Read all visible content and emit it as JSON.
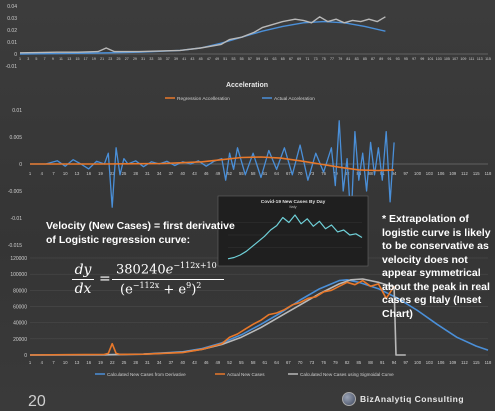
{
  "colors": {
    "blue": "#4a8fd8",
    "orange": "#e8782a",
    "gray": "#b9b9b9",
    "axis": "#8a8a8a",
    "grid": "#555555",
    "text": "#d0d0d0"
  },
  "annotations": {
    "velocity_title": "Velocity (New Cases) = first derivative of Logistic regression curve:",
    "note": "* Extrapolation of logistic curve is likely to be conservative as velocity does not appear symmetrical about the peak in real cases eg Italy (Inset Chart)",
    "eq_left_top": "dy",
    "eq_left_bottom": "dx",
    "eq_eq": "=",
    "eq_num_coef": "380240",
    "eq_num_exp": "−112x+10",
    "eq_den": "(e",
    "eq_den_exp1": "−112x",
    "eq_den_mid": " + e",
    "eq_den_exp2": "9",
    "eq_den_close": ")",
    "eq_den_pow": "2",
    "page_number": "20",
    "logo_text": "BizAnalytiq Consulting"
  },
  "chart_data": [
    {
      "type": "line",
      "title": "",
      "yticks": [
        "0.04",
        "0.03",
        "0.02",
        "0.01",
        "0",
        "-0.01"
      ],
      "ylim": [
        -0.01,
        0.04
      ],
      "x": [
        1,
        3,
        5,
        7,
        9,
        11,
        13,
        15,
        17,
        19,
        21,
        23,
        25,
        27,
        29,
        31,
        33,
        35,
        37,
        39,
        41,
        43,
        45,
        47,
        49,
        51,
        53,
        55,
        57,
        59,
        61,
        63,
        65,
        67,
        69,
        71,
        73,
        75,
        77,
        79,
        81,
        83,
        85,
        87,
        89,
        91,
        93,
        95,
        97,
        99,
        101,
        103,
        105,
        107,
        109,
        111,
        113,
        115
      ],
      "x_tick_labels": [
        "1",
        "3",
        "5",
        "7",
        "9",
        "11",
        "13",
        "15",
        "17",
        "19",
        "21",
        "23",
        "25",
        "27",
        "29",
        "31",
        "33",
        "35",
        "37",
        "39",
        "41",
        "43",
        "45",
        "47",
        "49",
        "51",
        "53",
        "55",
        "57",
        "59",
        "61",
        "63",
        "65",
        "67",
        "69",
        "71",
        "73",
        "75",
        "77",
        "79",
        "81",
        "83",
        "85",
        "87",
        "89",
        "91",
        "93",
        "95",
        "97",
        "99",
        "101",
        "103",
        "105",
        "107",
        "109",
        "111",
        "113",
        "115"
      ],
      "series": [
        {
          "color": "#4a8fd8",
          "x": [
            1,
            10,
            20,
            30,
            40,
            45,
            50,
            55,
            60,
            65,
            70,
            75,
            80,
            85,
            90
          ],
          "values": [
            0,
            0.0003,
            0.0008,
            0.0015,
            0.003,
            0.005,
            0.009,
            0.014,
            0.019,
            0.023,
            0.026,
            0.027,
            0.026,
            0.023,
            0.019
          ]
        },
        {
          "color": "#b9b9b9",
          "x": [
            1,
            5,
            10,
            15,
            20,
            22,
            24,
            30,
            40,
            45,
            50,
            52,
            55,
            58,
            60,
            62,
            65,
            68,
            70,
            72,
            74,
            76,
            78,
            80,
            82,
            84,
            86,
            88,
            90
          ],
          "values": [
            0.001,
            0.0012,
            0.0015,
            0.0015,
            0.002,
            0.005,
            0.002,
            0.002,
            0.003,
            0.005,
            0.008,
            0.012,
            0.014,
            0.018,
            0.022,
            0.024,
            0.027,
            0.029,
            0.028,
            0.026,
            0.031,
            0.027,
            0.029,
            0.026,
            0.028,
            0.027,
            0.029,
            0.027,
            0.031
          ]
        }
      ]
    },
    {
      "type": "line",
      "title": "Acceleration",
      "legend": [
        "Regression Accelleration",
        "Actual Acceleration"
      ],
      "yticks": [
        "0.01",
        "0.005",
        "0",
        "-0.005",
        "-0.01",
        "-0.015"
      ],
      "ylim": [
        -0.015,
        0.01
      ],
      "x_tick_labels": [
        "1",
        "4",
        "7",
        "10",
        "13",
        "16",
        "19",
        "22",
        "25",
        "28",
        "31",
        "34",
        "37",
        "40",
        "43",
        "46",
        "49",
        "52",
        "55",
        "58",
        "61",
        "64",
        "67",
        "70",
        "73",
        "76",
        "79",
        "82",
        "85",
        "88",
        "91",
        "94",
        "97",
        "100",
        "103",
        "106",
        "109",
        "112",
        "115",
        "118"
      ],
      "series": [
        {
          "name": "Regression Accelleration",
          "color": "#e8782a",
          "x": [
            1,
            20,
            35,
            45,
            50,
            55,
            60,
            65,
            70,
            75,
            80,
            85,
            90,
            94
          ],
          "values": [
            0,
            0,
            0.0001,
            0.0004,
            0.0008,
            0.0012,
            0.0013,
            0.0011,
            0.0006,
            0,
            -0.0006,
            -0.0011,
            -0.0012,
            -0.0011
          ]
        },
        {
          "name": "Actual Acceleration",
          "color": "#4a8fd8",
          "x": [
            1,
            5,
            8,
            10,
            12,
            14,
            16,
            18,
            20,
            21,
            22,
            23,
            24,
            25,
            26,
            28,
            30,
            32,
            34,
            36,
            38,
            40,
            42,
            44,
            46,
            48,
            50,
            51,
            52,
            53,
            54,
            56,
            58,
            60,
            62,
            64,
            66,
            68,
            70,
            72,
            74,
            76,
            78,
            79,
            80,
            81,
            82,
            83,
            84,
            85,
            86,
            87,
            88,
            89,
            90,
            91,
            92,
            93,
            94
          ],
          "values": [
            0,
            0,
            0.0006,
            -0.0004,
            0.0008,
            0,
            -0.0009,
            0.0005,
            0,
            0.002,
            -0.008,
            0.003,
            -0.002,
            0.001,
            0,
            0.0006,
            -0.0005,
            0.0004,
            0,
            0.0005,
            -0.0003,
            0.0004,
            0,
            0.0006,
            -0.0004,
            0.0005,
            0.001,
            -0.003,
            0.002,
            -0.001,
            0.003,
            -0.002,
            0.002,
            -0.0025,
            0.0025,
            -0.001,
            0.003,
            -0.002,
            0.0035,
            -0.003,
            0.002,
            -0.0015,
            0.003,
            -0.004,
            0.008,
            -0.005,
            0.001,
            -0.011,
            0.006,
            -0.003,
            0.002,
            -0.005,
            0.004,
            -0.002,
            0.003,
            -0.003,
            0.006,
            -0.007,
            0.004
          ]
        }
      ]
    },
    {
      "type": "line",
      "title": "",
      "yticks": [
        "120000",
        "100000",
        "80000",
        "60000",
        "40000",
        "20000",
        "0"
      ],
      "ylim": [
        0,
        120000
      ],
      "legend": [
        "Calculated New Cases from Derivative",
        "Actual New Cases",
        "Calculated New Cases using Sigmoidal Curve"
      ],
      "x_tick_labels": [
        "1",
        "4",
        "7",
        "10",
        "13",
        "16",
        "19",
        "22",
        "25",
        "28",
        "31",
        "34",
        "37",
        "40",
        "43",
        "46",
        "49",
        "52",
        "55",
        "58",
        "61",
        "64",
        "67",
        "70",
        "73",
        "76",
        "79",
        "82",
        "85",
        "88",
        "91",
        "94",
        "97",
        "100",
        "103",
        "106",
        "109",
        "112",
        "115",
        "118"
      ],
      "series": [
        {
          "name": "Calculated New Cases from Derivative",
          "color": "#4a8fd8",
          "x": [
            1,
            20,
            30,
            40,
            45,
            50,
            55,
            60,
            65,
            70,
            75,
            80,
            82,
            85,
            90,
            95,
            100,
            105,
            110,
            115,
            118
          ],
          "values": [
            0,
            300,
            1200,
            4000,
            8000,
            15000,
            25000,
            38000,
            52000,
            68000,
            82000,
            92000,
            93000,
            90000,
            82000,
            70000,
            55000,
            38000,
            22000,
            11000,
            6000
          ]
        },
        {
          "name": "Actual New Cases",
          "color": "#e8782a",
          "x": [
            1,
            10,
            20,
            21,
            22,
            23,
            24,
            30,
            40,
            45,
            50,
            52,
            54,
            56,
            58,
            60,
            62,
            64,
            66,
            68,
            70,
            72,
            74,
            76,
            78,
            80,
            82,
            84,
            86,
            88,
            90,
            92,
            94
          ],
          "values": [
            0,
            400,
            800,
            2000,
            14000,
            2000,
            800,
            1000,
            3000,
            7000,
            14000,
            22000,
            26000,
            32000,
            38000,
            43000,
            50000,
            52000,
            56000,
            62000,
            65000,
            70000,
            72000,
            78000,
            80000,
            85000,
            90000,
            87000,
            92000,
            85000,
            88000,
            70000,
            85000
          ]
        },
        {
          "name": "Calculated New Cases using Sigmoidal Curve",
          "color": "#b9b9b9",
          "x": [
            1,
            20,
            30,
            40,
            45,
            50,
            55,
            60,
            65,
            70,
            75,
            80,
            83,
            86,
            90,
            94,
            94.5,
            97
          ],
          "values": [
            0,
            200,
            1000,
            3500,
            7000,
            13000,
            22000,
            34000,
            48000,
            62000,
            76000,
            88000,
            93000,
            94000,
            90000,
            84000,
            0,
            0
          ]
        }
      ]
    },
    {
      "type": "line",
      "title": "Covid-19 New Cases By Day",
      "subtitle": "Italy",
      "series": [
        {
          "color": "#6fd0d8",
          "x": [
            1,
            3,
            5,
            7,
            9,
            11,
            13,
            15,
            17,
            19,
            21,
            23,
            25,
            27,
            29,
            31,
            33,
            35,
            37,
            39,
            41,
            43,
            45
          ],
          "values": [
            2,
            4,
            8,
            14,
            22,
            30,
            38,
            48,
            55,
            68,
            60,
            72,
            58,
            66,
            54,
            62,
            50,
            56,
            45,
            48,
            40,
            42,
            36
          ]
        }
      ],
      "ylim": [
        0,
        80
      ]
    }
  ]
}
